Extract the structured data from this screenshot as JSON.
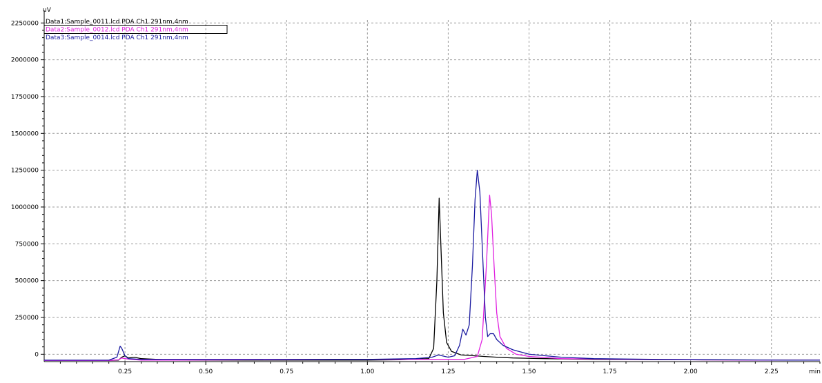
{
  "chart_data": {
    "type": "line",
    "y_unit": "uV",
    "x_unit": "min",
    "xlim": [
      0.0,
      2.4
    ],
    "ylim": [
      -50000,
      2270000
    ],
    "x_ticks": [
      0.25,
      0.5,
      0.75,
      1.0,
      1.25,
      1.5,
      1.75,
      2.0,
      2.25
    ],
    "x_tick_labels": [
      "0.25",
      "0.50",
      "0.75",
      "1.00",
      "1.25",
      "1.50",
      "1.75",
      "2.00",
      "2.25"
    ],
    "y_ticks": [
      0,
      250000,
      500000,
      750000,
      1000000,
      1250000,
      1500000,
      1750000,
      2000000,
      2250000
    ],
    "y_tick_labels": [
      "0",
      "250000",
      "500000",
      "750000",
      "1000000",
      "1250000",
      "1500000",
      "1750000",
      "2000000",
      "2250000"
    ],
    "grid": true,
    "legend_position": "top-left",
    "series": [
      {
        "name": "Data1:Sample_0011.lcd PDA Ch1 291nm,4nm",
        "color": "#000000",
        "x": [
          0.0,
          0.2,
          0.23,
          0.24,
          0.25,
          0.26,
          0.28,
          0.3,
          0.4,
          1.0,
          1.1,
          1.19,
          1.205,
          1.215,
          1.222,
          1.228,
          1.235,
          1.245,
          1.26,
          1.29,
          1.33,
          1.36,
          1.4,
          1.45,
          1.55,
          1.7,
          2.0,
          2.4
        ],
        "y": [
          -42000,
          -42000,
          -40000,
          -20000,
          -10000,
          -25000,
          -20000,
          -30000,
          -40000,
          -40000,
          -38000,
          -30000,
          40000,
          500000,
          1060000,
          700000,
          280000,
          80000,
          20000,
          -5000,
          -10000,
          -15000,
          -20000,
          -25000,
          -30000,
          -35000,
          -38000,
          -40000
        ]
      },
      {
        "name": "Data2:Sample_0012.lcd PDA Ch1 291nm,4nm",
        "color": "#e020e0",
        "x": [
          0.0,
          0.2,
          0.23,
          0.24,
          0.25,
          0.27,
          0.3,
          0.4,
          0.9,
          1.1,
          1.3,
          1.34,
          1.355,
          1.368,
          1.378,
          1.384,
          1.392,
          1.4,
          1.41,
          1.43,
          1.46,
          1.5,
          1.6,
          1.8,
          2.0,
          2.2,
          2.4
        ],
        "y": [
          -42000,
          -42000,
          -38000,
          -25000,
          -30000,
          -35000,
          -40000,
          -40000,
          -35000,
          -35000,
          -35000,
          -15000,
          100000,
          600000,
          1080000,
          950000,
          600000,
          280000,
          120000,
          40000,
          0,
          -15000,
          -30000,
          -35000,
          -38000,
          -40000,
          -40000
        ]
      },
      {
        "name": "Data3:Sample_0014.lcd PDA Ch1 291nm,4nm",
        "color": "#1a1aa0",
        "x": [
          0.0,
          0.2,
          0.225,
          0.235,
          0.24,
          0.25,
          0.26,
          0.3,
          0.4,
          1.0,
          1.15,
          1.2,
          1.22,
          1.25,
          1.27,
          1.285,
          1.295,
          1.305,
          1.315,
          1.325,
          1.333,
          1.34,
          1.348,
          1.357,
          1.365,
          1.372,
          1.38,
          1.39,
          1.4,
          1.42,
          1.45,
          1.5,
          1.55,
          1.6,
          1.7,
          1.9,
          2.1,
          2.3,
          2.4
        ],
        "y": [
          -40000,
          -40000,
          -20000,
          55000,
          40000,
          -10000,
          -30000,
          -35000,
          -35000,
          -35000,
          -30000,
          -20000,
          -5000,
          -20000,
          -10000,
          60000,
          170000,
          130000,
          200000,
          600000,
          1050000,
          1250000,
          1100000,
          650000,
          250000,
          120000,
          140000,
          140000,
          100000,
          60000,
          30000,
          0,
          -10000,
          -20000,
          -30000,
          -35000,
          -38000,
          -40000,
          -40000
        ]
      }
    ]
  }
}
